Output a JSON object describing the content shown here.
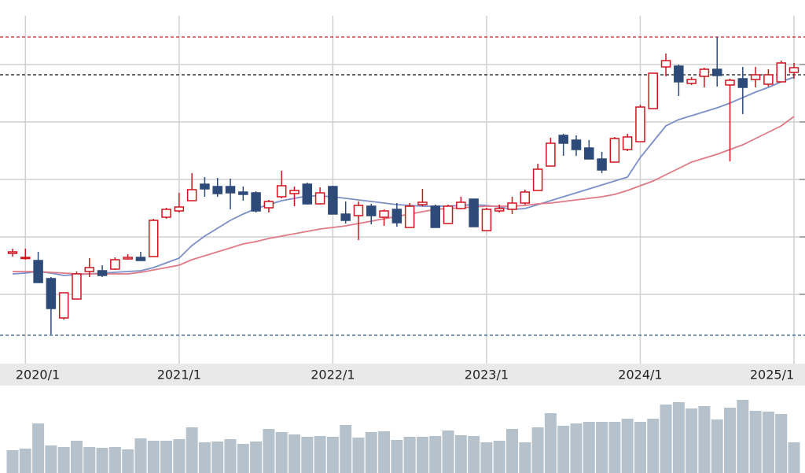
{
  "chart_data": {
    "type": "candlestick",
    "categories": [
      null,
      "2020/1",
      null,
      null,
      null,
      null,
      null,
      null,
      null,
      null,
      null,
      null,
      null,
      "2021/1",
      null,
      null,
      null,
      null,
      null,
      null,
      null,
      null,
      null,
      null,
      null,
      "2022/1",
      null,
      null,
      null,
      null,
      null,
      null,
      null,
      null,
      null,
      null,
      null,
      "2023/1",
      null,
      null,
      null,
      null,
      null,
      null,
      null,
      null,
      null,
      null,
      null,
      "2024/1",
      null,
      null,
      null,
      null,
      null,
      null,
      null,
      null,
      null,
      null,
      null,
      "2025/1"
    ],
    "open": [
      125,
      119,
      116,
      93,
      43,
      67,
      102,
      103,
      105,
      118,
      120,
      121,
      171,
      179,
      192,
      213,
      210,
      210,
      203,
      202,
      183,
      197,
      201,
      213,
      188,
      210,
      175,
      173,
      185,
      171,
      181,
      158,
      187,
      185,
      163,
      182,
      194,
      154,
      179,
      181,
      189,
      205,
      236,
      275,
      269,
      259,
      245,
      241,
      257,
      267,
      309,
      362,
      363,
      341,
      350,
      359,
      339,
      347,
      346,
      340,
      343,
      355
    ],
    "close": [
      127,
      120,
      88,
      55,
      75,
      99,
      107,
      97,
      117,
      120,
      116,
      167,
      181,
      184,
      206,
      207,
      201,
      202,
      200,
      179,
      191,
      211,
      205,
      188,
      202,
      175,
      167,
      186,
      173,
      179,
      164,
      185,
      190,
      158,
      185,
      190,
      159,
      181,
      182,
      189,
      203,
      232,
      265,
      265,
      257,
      245,
      231,
      271,
      273,
      311,
      354,
      370,
      343,
      346,
      359,
      351,
      345,
      336,
      352,
      352,
      367,
      361
    ],
    "high": [
      131,
      131,
      127,
      95,
      75,
      102,
      119,
      110,
      120,
      124,
      127,
      169,
      183,
      202,
      227,
      222,
      221,
      220,
      210,
      204,
      193,
      230,
      210,
      215,
      209,
      211,
      191,
      191,
      188,
      181,
      189,
      189,
      207,
      187,
      187,
      197,
      194,
      183,
      187,
      197,
      206,
      239,
      272,
      277,
      275,
      269,
      254,
      273,
      277,
      314,
      354,
      379,
      365,
      349,
      361,
      400,
      347,
      362,
      362,
      359,
      370,
      367
    ],
    "low": [
      121,
      117,
      88,
      22,
      41,
      67,
      95,
      95,
      104,
      117,
      116,
      121,
      169,
      177,
      192,
      197,
      197,
      181,
      192,
      177,
      177,
      195,
      185,
      187,
      187,
      175,
      163,
      142,
      162,
      160,
      159,
      158,
      185,
      158,
      163,
      181,
      159,
      154,
      177,
      175,
      187,
      205,
      236,
      249,
      249,
      245,
      227,
      241,
      255,
      267,
      309,
      350,
      325,
      339,
      336,
      337,
      242,
      302,
      336,
      337,
      343,
      347
    ],
    "up_color": "#d0141e",
    "down_color": "#2e4a78",
    "moving_averages": [
      {
        "color": "#7b8fc8",
        "values": [
          99,
          100,
          102,
          100,
          97,
          98,
          99,
          100,
          101,
          102,
          103,
          107,
          113,
          119,
          135,
          147,
          157,
          167,
          175,
          182,
          187,
          192,
          195,
          198,
          198,
          197,
          195,
          193,
          191,
          189,
          187,
          186,
          185,
          185,
          185,
          186,
          187,
          186,
          184,
          181,
          182,
          187,
          192,
          197,
          202,
          207,
          212,
          217,
          222,
          247,
          267,
          287,
          295,
          300,
          305,
          310,
          316,
          323,
          330,
          336,
          343,
          349
        ]
      },
      {
        "color": "#e07a86",
        "values": [
          102,
          102,
          102,
          101,
          100,
          99,
          99,
          99,
          99,
          99,
          101,
          104,
          107,
          110,
          117,
          122,
          127,
          132,
          137,
          140,
          144,
          147,
          150,
          153,
          156,
          158,
          160,
          163,
          166,
          169,
          172,
          175,
          178,
          181,
          182,
          183,
          184,
          185,
          185,
          185,
          186,
          188,
          189,
          191,
          193,
          195,
          197,
          200,
          205,
          211,
          217,
          225,
          233,
          241,
          246,
          251,
          257,
          263,
          271,
          279,
          287,
          299
        ]
      }
    ],
    "reference_lines": [
      {
        "value": 400,
        "color": "#c8202a"
      },
      {
        "value": 352,
        "color": "#111111"
      },
      {
        "value": 21,
        "color": "#2a5a8a"
      }
    ],
    "ylim": [
      0,
      427
    ],
    "yticks": [
      73,
      146,
      219,
      292,
      365
    ],
    "grid": true,
    "volume": {
      "color": "#b6c2cb",
      "ylim": [
        0,
        111
      ],
      "values": [
        29,
        31,
        63,
        35,
        33,
        41,
        33,
        32,
        33,
        30,
        44,
        41,
        41,
        43,
        58,
        39,
        40,
        43,
        37,
        40,
        56,
        52,
        49,
        46,
        47,
        46,
        61,
        45,
        52,
        53,
        42,
        46,
        46,
        47,
        54,
        48,
        47,
        39,
        41,
        56,
        39,
        58,
        76,
        60,
        63,
        65,
        65,
        65,
        69,
        65,
        69,
        87,
        90,
        82,
        85,
        68,
        83,
        93,
        79,
        78,
        75,
        39
      ]
    }
  }
}
